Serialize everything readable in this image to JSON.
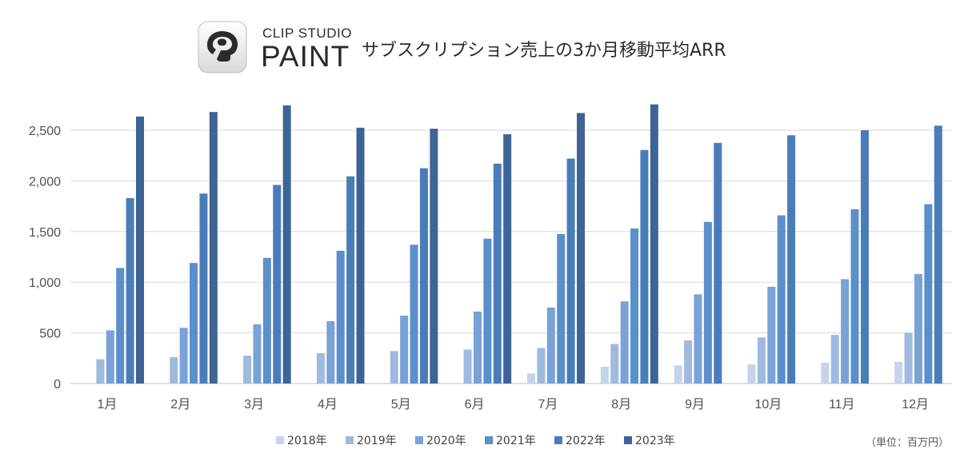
{
  "header": {
    "brand_line1": "CLIP STUDIO",
    "brand_line2": "PAINT",
    "title": "サブスクリプション売上の3か月移動平均ARR",
    "unit_note": "（単位：百万円）"
  },
  "icons": {
    "app_icon": "clip-studio-paint-logo-icon"
  },
  "chart_data": {
    "type": "bar",
    "title": "サブスクリプション売上の3か月移動平均ARR",
    "xlabel": "",
    "ylabel": "",
    "unit": "（単位：百万円）",
    "ylim": [
      0,
      2750
    ],
    "yticks": [
      0,
      500,
      1000,
      1500,
      2000,
      2500
    ],
    "ytick_labels": [
      "0",
      "500",
      "1,000",
      "1,500",
      "2,000",
      "2,500"
    ],
    "grid": true,
    "legend_position": "bottom",
    "categories": [
      "1月",
      "2月",
      "3月",
      "4月",
      "5月",
      "6月",
      "7月",
      "8月",
      "9月",
      "10月",
      "11月",
      "12月"
    ],
    "series": [
      {
        "name": "2018年",
        "color": "#c5d4ea",
        "values": [
          null,
          null,
          null,
          null,
          null,
          null,
          100,
          165,
          180,
          190,
          205,
          215
        ]
      },
      {
        "name": "2019年",
        "color": "#a0b9df",
        "values": [
          240,
          260,
          275,
          300,
          320,
          335,
          350,
          390,
          425,
          455,
          480,
          500
        ]
      },
      {
        "name": "2020年",
        "color": "#79a2d6",
        "values": [
          525,
          550,
          585,
          615,
          670,
          710,
          750,
          810,
          880,
          955,
          1030,
          1080
        ]
      },
      {
        "name": "2021年",
        "color": "#5b8fcb",
        "values": [
          1140,
          1190,
          1240,
          1310,
          1370,
          1430,
          1475,
          1530,
          1595,
          1660,
          1720,
          1770
        ]
      },
      {
        "name": "2022年",
        "color": "#4a7db8",
        "values": [
          1830,
          1875,
          1960,
          2045,
          2125,
          2170,
          2220,
          2305,
          2375,
          2450,
          2500,
          2545
        ]
      },
      {
        "name": "2023年",
        "color": "#3d6494",
        "values": [
          2635,
          2680,
          2745,
          2525,
          2515,
          2460,
          2670,
          2755,
          null,
          null,
          null,
          null
        ]
      }
    ]
  }
}
